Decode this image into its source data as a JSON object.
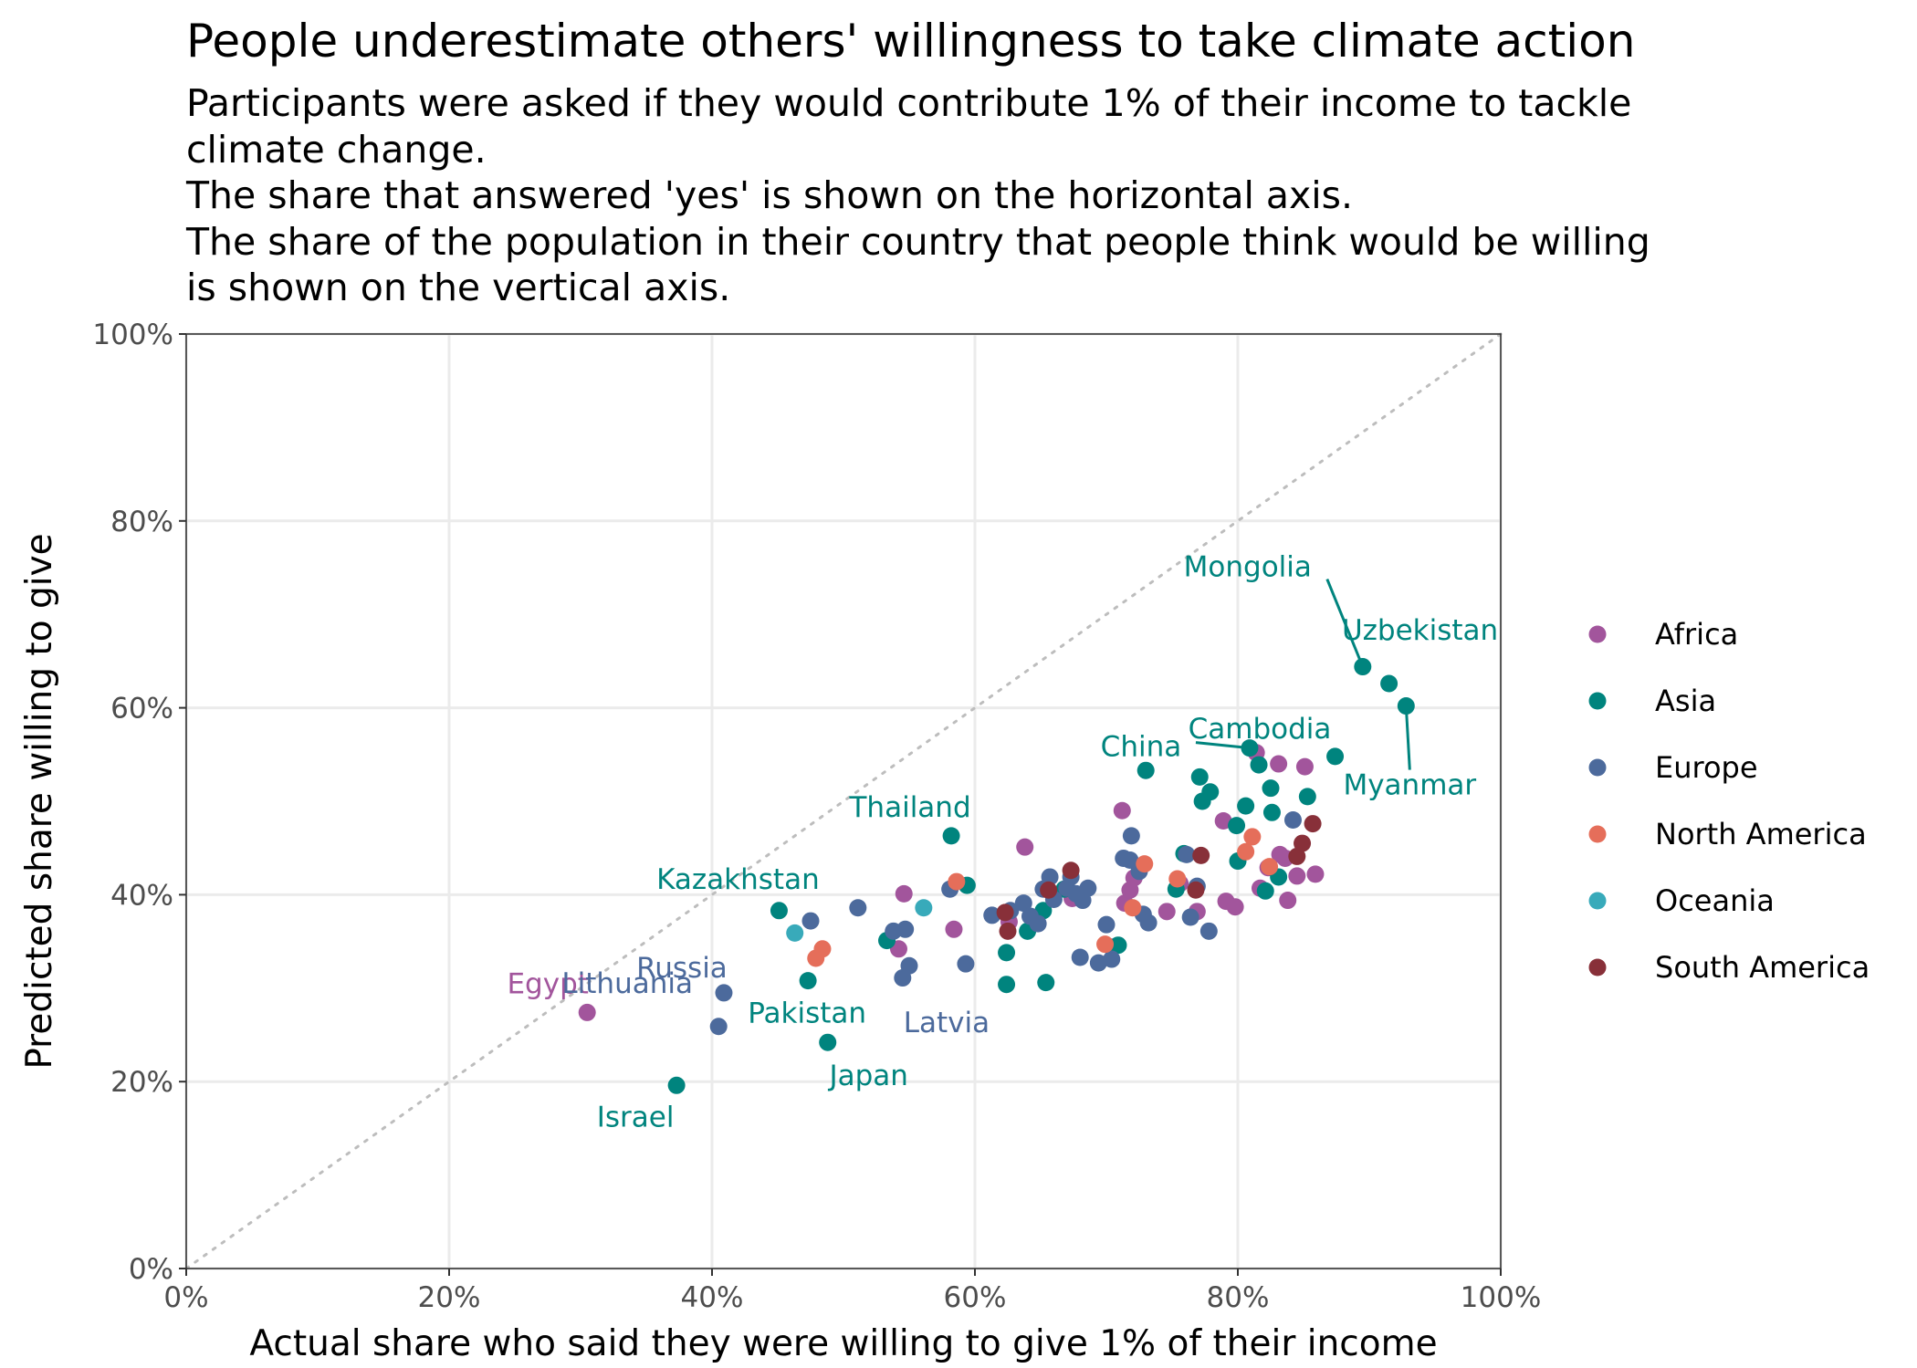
{
  "chart_data": {
    "type": "scatter",
    "title": "People underestimate others' willingness to take climate action",
    "subtitle": [
      "Participants were asked if they would contribute 1% of their income to tackle",
      "climate change.",
      "The share that answered 'yes' is shown on the horizontal axis.",
      "The share of the population in their country that people think would be willing",
      "is shown on the vertical axis."
    ],
    "xlabel": "Actual share who said they were willing to give 1% of their income",
    "ylabel": "Predicted share willing to give",
    "xlim": [
      0,
      100
    ],
    "ylim": [
      0,
      100
    ],
    "x_ticks": [
      0,
      20,
      40,
      60,
      80,
      100
    ],
    "y_ticks": [
      0,
      20,
      40,
      60,
      80,
      100
    ],
    "x_tick_labels": [
      "0%",
      "20%",
      "40%",
      "60%",
      "80%",
      "100%"
    ],
    "y_tick_labels": [
      "0%",
      "20%",
      "40%",
      "60%",
      "80%",
      "100%"
    ],
    "grid": true,
    "reference_line": "y = x (dotted, grey)",
    "legend_position": "right",
    "colors": {
      "Africa": "#a2559c",
      "Asia": "#00847e",
      "Europe": "#4c6a9c",
      "North America": "#e56e5a",
      "Oceania": "#38aaba",
      "South America": "#883039"
    },
    "series": [
      {
        "name": "Africa",
        "points": [
          [
            30.5,
            27.4
          ],
          [
            54.2,
            34.2
          ],
          [
            54.6,
            40.1
          ],
          [
            58.4,
            36.3
          ],
          [
            62.6,
            37.1
          ],
          [
            63.8,
            45.1
          ],
          [
            67.4,
            39.6
          ],
          [
            70.4,
            34.4
          ],
          [
            71.2,
            49.0
          ],
          [
            71.4,
            39.1
          ],
          [
            71.8,
            40.5
          ],
          [
            72.1,
            41.8
          ],
          [
            74.6,
            38.2
          ],
          [
            75.6,
            41.2
          ],
          [
            76.9,
            38.2
          ],
          [
            78.9,
            47.9
          ],
          [
            79.1,
            39.3
          ],
          [
            79.8,
            38.7
          ],
          [
            81.4,
            55.2
          ],
          [
            81.7,
            40.7
          ],
          [
            83.1,
            54.0
          ],
          [
            83.2,
            44.3
          ],
          [
            83.8,
            39.4
          ],
          [
            84.5,
            42.0
          ],
          [
            85.1,
            53.7
          ],
          [
            85.9,
            42.2
          ],
          [
            83.6,
            43.9
          ],
          [
            82.3,
            42.9
          ]
        ]
      },
      {
        "name": "Asia",
        "points": [
          [
            37.3,
            19.6
          ],
          [
            45.1,
            38.3
          ],
          [
            47.3,
            30.8
          ],
          [
            48.8,
            24.2
          ],
          [
            53.3,
            35.1
          ],
          [
            58.2,
            46.3
          ],
          [
            59.4,
            41.0
          ],
          [
            62.4,
            33.8
          ],
          [
            62.4,
            30.4
          ],
          [
            64.0,
            36.1
          ],
          [
            65.2,
            38.3
          ],
          [
            65.4,
            30.6
          ],
          [
            66.8,
            40.6
          ],
          [
            70.9,
            34.6
          ],
          [
            73.0,
            53.3
          ],
          [
            75.3,
            40.6
          ],
          [
            75.9,
            44.4
          ],
          [
            77.1,
            52.6
          ],
          [
            77.3,
            50.0
          ],
          [
            77.9,
            51.0
          ],
          [
            79.9,
            47.4
          ],
          [
            80.0,
            43.6
          ],
          [
            80.6,
            49.5
          ],
          [
            80.9,
            55.7
          ],
          [
            81.6,
            53.9
          ],
          [
            82.1,
            40.4
          ],
          [
            82.5,
            51.4
          ],
          [
            82.6,
            48.8
          ],
          [
            83.1,
            41.9
          ],
          [
            85.3,
            50.5
          ],
          [
            87.4,
            54.8
          ],
          [
            89.5,
            64.4
          ],
          [
            91.5,
            62.6
          ],
          [
            92.8,
            60.2
          ]
        ]
      },
      {
        "name": "Europe",
        "points": [
          [
            40.5,
            25.9
          ],
          [
            40.9,
            29.5
          ],
          [
            47.5,
            37.2
          ],
          [
            51.1,
            38.6
          ],
          [
            53.8,
            36.1
          ],
          [
            54.5,
            31.1
          ],
          [
            54.7,
            36.3
          ],
          [
            55.0,
            32.4
          ],
          [
            58.1,
            40.6
          ],
          [
            59.3,
            32.6
          ],
          [
            61.3,
            37.8
          ],
          [
            62.7,
            38.3
          ],
          [
            63.7,
            39.1
          ],
          [
            64.2,
            37.7
          ],
          [
            64.8,
            36.9
          ],
          [
            65.2,
            40.6
          ],
          [
            65.7,
            41.9
          ],
          [
            66.0,
            39.5
          ],
          [
            67.0,
            40.7
          ],
          [
            67.3,
            41.9
          ],
          [
            67.7,
            40.1
          ],
          [
            68.0,
            33.3
          ],
          [
            68.2,
            39.4
          ],
          [
            68.6,
            40.7
          ],
          [
            69.4,
            32.7
          ],
          [
            70.0,
            36.8
          ],
          [
            70.4,
            33.1
          ],
          [
            71.3,
            43.9
          ],
          [
            71.8,
            43.7
          ],
          [
            71.9,
            46.3
          ],
          [
            72.8,
            37.9
          ],
          [
            73.2,
            37.0
          ],
          [
            76.1,
            44.3
          ],
          [
            76.4,
            37.6
          ],
          [
            76.9,
            40.9
          ],
          [
            77.8,
            36.1
          ],
          [
            84.2,
            48.0
          ],
          [
            72.5,
            42.5
          ]
        ]
      },
      {
        "name": "North America",
        "points": [
          [
            47.9,
            33.2
          ],
          [
            48.4,
            34.2
          ],
          [
            58.6,
            41.4
          ],
          [
            69.9,
            34.7
          ],
          [
            72.0,
            38.6
          ],
          [
            72.9,
            43.3
          ],
          [
            75.4,
            41.7
          ],
          [
            80.6,
            44.6
          ],
          [
            81.1,
            46.2
          ],
          [
            82.4,
            43.0
          ]
        ]
      },
      {
        "name": "Oceania",
        "points": [
          [
            46.3,
            35.9
          ],
          [
            56.1,
            38.6
          ]
        ]
      },
      {
        "name": "South America",
        "points": [
          [
            62.3,
            38.1
          ],
          [
            62.5,
            36.1
          ],
          [
            65.6,
            40.5
          ],
          [
            67.3,
            42.6
          ],
          [
            76.8,
            40.5
          ],
          [
            77.2,
            44.2
          ],
          [
            84.5,
            44.1
          ],
          [
            84.9,
            45.5
          ],
          [
            85.7,
            47.6
          ]
        ]
      }
    ],
    "annotations": [
      {
        "text": "Egypt",
        "series": "Africa",
        "x": 30.5,
        "y": 27.4
      },
      {
        "text": "Russia",
        "series": "Europe",
        "x": 40.9,
        "y": 29.5
      },
      {
        "text": "Lithuania",
        "series": "Europe",
        "x": 40.5,
        "y": 25.9
      },
      {
        "text": "Latvia",
        "series": "Europe",
        "x": 59.3,
        "y": 32.6
      },
      {
        "text": "Israel",
        "series": "Asia",
        "x": 37.3,
        "y": 19.6
      },
      {
        "text": "Kazakhstan",
        "series": "Asia",
        "x": 45.1,
        "y": 38.3
      },
      {
        "text": "Pakistan",
        "series": "Asia",
        "x": 47.3,
        "y": 30.8
      },
      {
        "text": "Japan",
        "series": "Asia",
        "x": 48.8,
        "y": 24.2
      },
      {
        "text": "Thailand",
        "series": "Asia",
        "x": 58.2,
        "y": 46.3
      },
      {
        "text": "China",
        "series": "Asia",
        "x": 80.9,
        "y": 55.7
      },
      {
        "text": "Cambodia",
        "series": "Asia",
        "x": 81.6,
        "y": 53.9
      },
      {
        "text": "Mongolia",
        "series": "Asia",
        "x": 89.5,
        "y": 64.4
      },
      {
        "text": "Uzbekistan",
        "series": "Asia",
        "x": 91.5,
        "y": 62.6
      },
      {
        "text": "Myanmar",
        "series": "Asia",
        "x": 92.8,
        "y": 60.2
      }
    ]
  }
}
